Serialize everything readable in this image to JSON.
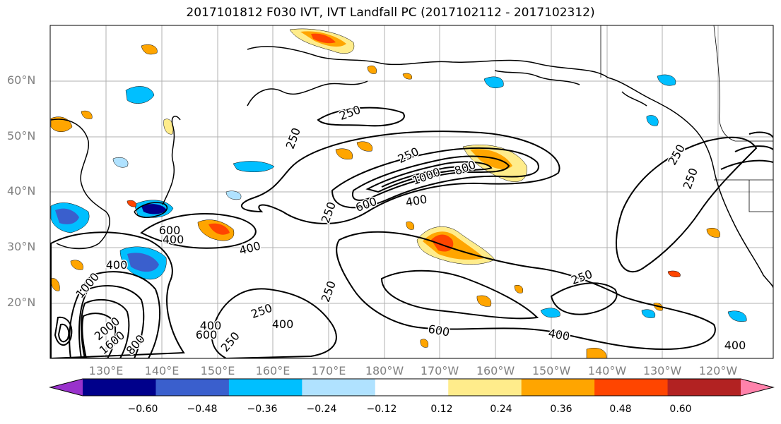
{
  "title": "2017101812 F030 IVT, IVT Landfall PC (2017102112 - 2017102312)",
  "map": {
    "lat_labels": [
      "60°N",
      "50°N",
      "40°N",
      "30°N",
      "20°N"
    ],
    "lon_labels": [
      "130°E",
      "140°E",
      "150°E",
      "160°E",
      "170°E",
      "180°W",
      "170°W",
      "160°W",
      "150°W",
      "140°W",
      "130°W",
      "120°W"
    ],
    "contour_labels": [
      "250",
      "250",
      "250",
      "250",
      "250",
      "250",
      "250",
      "250",
      "1000",
      "800",
      "600",
      "400",
      "400",
      "400",
      "400",
      "600",
      "600",
      "800",
      "1000",
      "2000",
      "1600",
      "400",
      "400",
      "250",
      "250",
      "600",
      "400",
      "400"
    ]
  },
  "colorbar": {
    "ticks": [
      "−0.60",
      "−0.48",
      "−0.36",
      "−0.24",
      "−0.12",
      "0.12",
      "0.24",
      "0.36",
      "0.48",
      "0.60"
    ],
    "colors": [
      "#9932cc",
      "#00008b",
      "#3a5fcd",
      "#00bfff",
      "#b0e2ff",
      "#ffffff",
      "#ffec8b",
      "#ffa500",
      "#ff4500",
      "#b22222",
      "#ff82ab"
    ]
  }
}
